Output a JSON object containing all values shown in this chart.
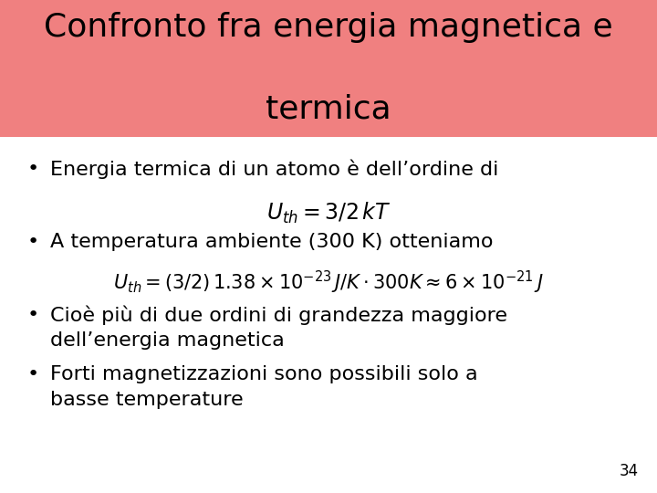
{
  "title_line1": "Confronto fra energia magnetica e",
  "title_line2": "termica",
  "title_bg_color": "#F08080",
  "title_text_color": "#000000",
  "title_fontsize": 26,
  "bg_color": "#FFFFFF",
  "bullet_color": "#000000",
  "bullet_fontsize": 16,
  "formula_fontsize": 16,
  "page_number": "34",
  "bullet1": "Energia termica di un atomo è dell’ordine di",
  "bullet2": "A temperatura ambiente (300 K) otteniamo",
  "bullet3a": "Cioè più di due ordini di grandezza maggiore",
  "bullet3b": "dell’energia magnetica",
  "bullet4a": "Forti magnetizzazioni sono possibili solo a",
  "bullet4b": "basse temperature",
  "formula1": "$U_{th} = 3/2\\,kT$",
  "formula2": "$U_{th} = (3/2)\\,1.38 \\times 10^{-23}\\,J/K\\cdot 300K \\approx 6 \\times 10^{-21}\\,J$"
}
